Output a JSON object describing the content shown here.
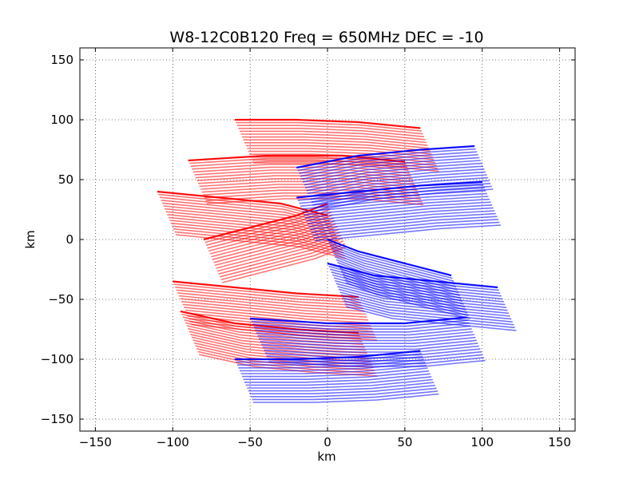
{
  "chart_data": {
    "type": "scatter",
    "title": "W8-12C0B120  Freq = 650MHz  DEC = -10",
    "xlabel": "km",
    "ylabel": "km",
    "xlim": [
      -160,
      160
    ],
    "ylim": [
      -160,
      160
    ],
    "xticks": [
      -150,
      -100,
      -50,
      0,
      50,
      100,
      150
    ],
    "yticks": [
      -150,
      -100,
      -50,
      0,
      50,
      100,
      150
    ],
    "xtick_labels": [
      "−150",
      "−100",
      "−50",
      "0",
      "50",
      "100",
      "150"
    ],
    "ytick_labels": [
      "−150",
      "−100",
      "−50",
      "0",
      "50",
      "100",
      "150"
    ],
    "grid": true,
    "legend": "none",
    "series": [
      {
        "color": "#ff0000",
        "tracks": [
          {
            "x": [
              -60,
              -20,
              20,
              60
            ],
            "y": [
              100,
              100,
              98,
              93
            ]
          },
          {
            "x": [
              -90,
              -40,
              10,
              50
            ],
            "y": [
              66,
              70,
              70,
              65
            ]
          },
          {
            "x": [
              -110,
              -70,
              -30,
              0
            ],
            "y": [
              40,
              35,
              30,
              20
            ]
          },
          {
            "x": [
              -80,
              -50,
              -20,
              0
            ],
            "y": [
              0,
              10,
              20,
              30
            ]
          },
          {
            "x": [
              -100,
              -60,
              -20,
              20
            ],
            "y": [
              -35,
              -40,
              -45,
              -48
            ]
          },
          {
            "x": [
              -95,
              -60,
              -20,
              20
            ],
            "y": [
              -60,
              -70,
              -75,
              -78
            ]
          }
        ]
      },
      {
        "color": "#0000ff",
        "tracks": [
          {
            "x": [
              -60,
              -20,
              20,
              60
            ],
            "y": [
              -100,
              -100,
              -98,
              -93
            ]
          },
          {
            "x": [
              -50,
              0,
              50,
              90
            ],
            "y": [
              -66,
              -70,
              -70,
              -65
            ]
          },
          {
            "x": [
              0,
              30,
              70,
              110
            ],
            "y": [
              -20,
              -30,
              -35,
              -40
            ]
          },
          {
            "x": [
              0,
              20,
              50,
              80
            ],
            "y": [
              0,
              -10,
              -20,
              -30
            ]
          },
          {
            "x": [
              -20,
              20,
              60,
              100
            ],
            "y": [
              35,
              40,
              45,
              48
            ]
          },
          {
            "x": [
              -20,
              20,
              60,
              95
            ],
            "y": [
              60,
              70,
              75,
              78
            ]
          }
        ]
      }
    ]
  }
}
